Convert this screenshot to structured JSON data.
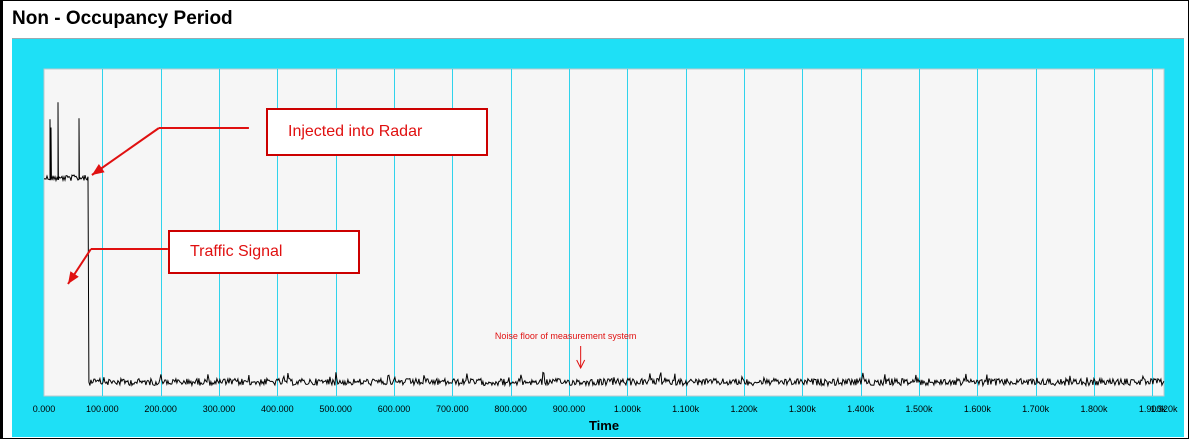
{
  "panel_title": "Non - Occupancy Period",
  "chart_data": {
    "type": "line",
    "title": "",
    "xlabel": "Time",
    "ylabel": "",
    "xlim": [
      0,
      1920000
    ],
    "x_tick_values": [
      0,
      100000,
      200000,
      300000,
      400000,
      500000,
      600000,
      700000,
      800000,
      900000,
      1000000,
      1100000,
      1200000,
      1300000,
      1400000,
      1500000,
      1600000,
      1700000,
      1800000,
      1900000,
      1920000
    ],
    "x_tick_labels": [
      "0.000",
      "100.000",
      "200.000",
      "300.000",
      "400.000",
      "500.000",
      "600.000",
      "700.000",
      "800.000",
      "900.000",
      "1.000k",
      "1.100k",
      "1.200k",
      "1.300k",
      "1.400k",
      "1.500k",
      "1.600k",
      "1.700k",
      "1.800k",
      "1.900k",
      "1.920k"
    ],
    "y_axis_labels_shown": false,
    "grid": "vertical lines at every x tick",
    "series_color": "#000000",
    "signal_segments": [
      {
        "x_range": [
          0,
          77000
        ],
        "level": "high (radar-injected signal) with periodic spikes"
      },
      {
        "x_range": [
          77000,
          1920000
        ],
        "level": "noise floor"
      }
    ],
    "annotations": [
      {
        "text": "Injected into Radar",
        "points_to_x": 77000,
        "color": "#e01010"
      },
      {
        "text": "Traffic Signal",
        "points_to_x": 77000,
        "color": "#e01010"
      },
      {
        "text": "Noise floor of measurement system",
        "points_to_x": 920000,
        "color": "#e01010"
      }
    ]
  }
}
